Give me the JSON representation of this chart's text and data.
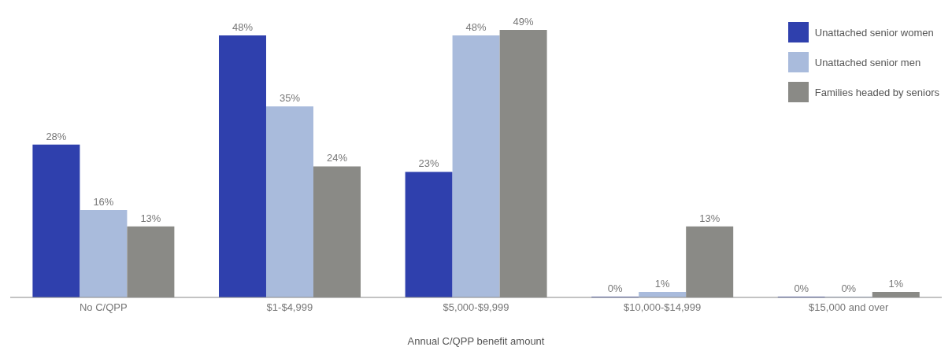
{
  "chart_data": {
    "type": "bar",
    "xlabel": "Annual C/QPP benefit amount",
    "categories": [
      "No C/QPP",
      "$1-$4,999",
      "$5,000-$9,999",
      "$10,000-$14,999",
      "$15,000 and over"
    ],
    "series": [
      {
        "name": "Unattached senior women",
        "color": "#2f40ad",
        "values": [
          28,
          48,
          23,
          0,
          0
        ],
        "value_labels": [
          "28%",
          "48%",
          "23%",
          "0%",
          "0%"
        ]
      },
      {
        "name": "Unattached senior men",
        "color": "#a9bbdc",
        "values": [
          16,
          35,
          48,
          1,
          0
        ],
        "value_labels": [
          "16%",
          "35%",
          "48%",
          "1%",
          "0%"
        ]
      },
      {
        "name": "Families headed by seniors",
        "color": "#8a8a86",
        "values": [
          13,
          24,
          49,
          13,
          1
        ],
        "value_labels": [
          "13%",
          "24%",
          "49%",
          "13%",
          "1%"
        ]
      }
    ],
    "legend": "top right",
    "grid": false
  }
}
